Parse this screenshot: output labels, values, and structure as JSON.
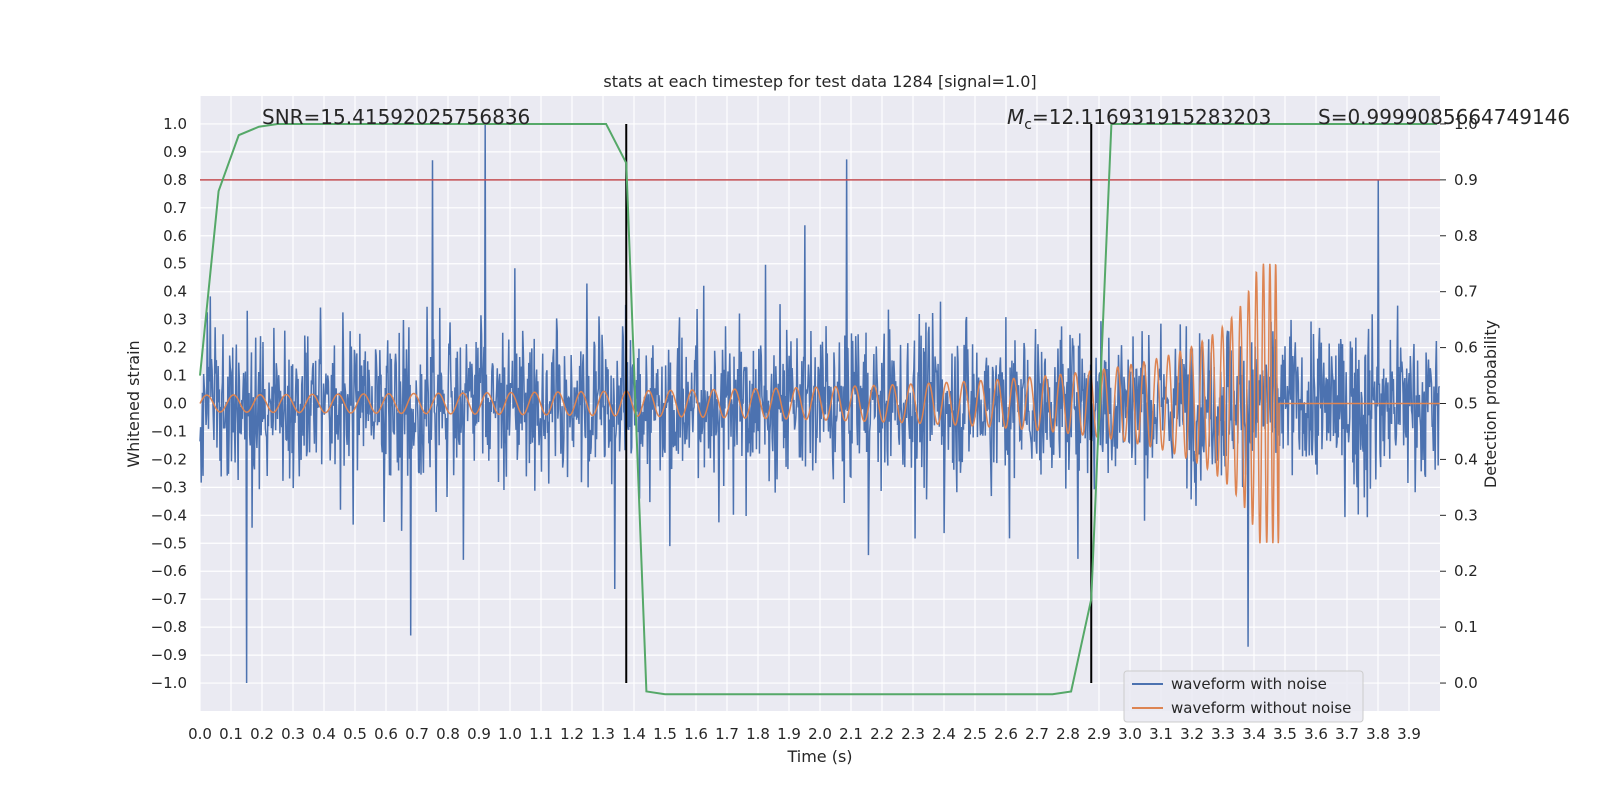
{
  "chart_data": {
    "type": "line",
    "title": "stats at each timestep for test data 1284 [signal=1.0]",
    "xlabel": "Time (s)",
    "ylabel": "Whitened strain",
    "ylabel_right": "Detection probability",
    "xlim": [
      0.0,
      4.0
    ],
    "ylim": [
      -1.1,
      1.1
    ],
    "ylim_right": [
      -0.05,
      1.05
    ],
    "x_ticks": [
      "0.0",
      "0.1",
      "0.2",
      "0.3",
      "0.4",
      "0.5",
      "0.6",
      "0.7",
      "0.8",
      "0.9",
      "1.0",
      "1.1",
      "1.2",
      "1.3",
      "1.4",
      "1.5",
      "1.6",
      "1.7",
      "1.8",
      "1.9",
      "2.0",
      "2.1",
      "2.2",
      "2.3",
      "2.4",
      "2.5",
      "2.6",
      "2.7",
      "2.8",
      "2.9",
      "3.0",
      "3.1",
      "3.2",
      "3.3",
      "3.4",
      "3.5",
      "3.6",
      "3.7",
      "3.8",
      "3.9"
    ],
    "y_ticks": [
      "1.0",
      "0.9",
      "0.8",
      "0.7",
      "0.6",
      "0.5",
      "0.4",
      "0.3",
      "0.2",
      "0.1",
      "0.0",
      "−0.1",
      "−0.2",
      "−0.3",
      "−0.4",
      "−0.5",
      "−0.6",
      "−0.7",
      "−0.8",
      "−0.9",
      "−1.0"
    ],
    "y_ticks_right": [
      "1.0",
      "0.9",
      "0.8",
      "0.7",
      "0.6",
      "0.5",
      "0.4",
      "0.3",
      "0.2",
      "0.1",
      "0.0"
    ],
    "grid": true,
    "legend_position": "bottom-right",
    "annotations": {
      "snr": "SNR=15.41592025756836",
      "mc_symbol": "M",
      "mc_subscript": "c",
      "mc_value": "=12.116931915283203",
      "s": "S=0.9999085664749146"
    },
    "vertical_lines_x": [
      1.375,
      2.875
    ],
    "threshold_right": 0.9,
    "series": [
      {
        "name": "waveform with noise",
        "color": "#4c72b0",
        "description": "noisy whitened strain, roughly within ±0.9 with spikes to 1.0 near 0.92 s and −1.0 near 0.15 s",
        "peaks": [
          [
            0.15,
            -1.0
          ],
          [
            0.75,
            0.87
          ],
          [
            0.92,
            1.0
          ],
          [
            0.68,
            -0.83
          ],
          [
            3.38,
            -0.87
          ],
          [
            3.8,
            0.8
          ]
        ]
      },
      {
        "name": "waveform without noise",
        "color": "#dd8452",
        "description": "chirp signal, amplitude about 0.03 at start rising to about 0.5 at merger near 3.48 s, then zero",
        "amplitude_start": 0.03,
        "merger_time": 3.48,
        "merger_amplitude": 0.5
      },
      {
        "name": "detection probability",
        "color": "#55a868",
        "axis": "right",
        "x": [
          0.0,
          0.06,
          0.125,
          0.19,
          0.25,
          1.31,
          1.375,
          1.44,
          1.5,
          2.75,
          2.81,
          2.875,
          2.94,
          3.0,
          3.99
        ],
        "values": [
          0.55,
          0.88,
          0.98,
          0.995,
          1.0,
          1.0,
          0.93,
          -0.015,
          -0.02,
          -0.02,
          -0.015,
          0.15,
          1.0,
          1.0,
          1.0
        ]
      }
    ]
  }
}
